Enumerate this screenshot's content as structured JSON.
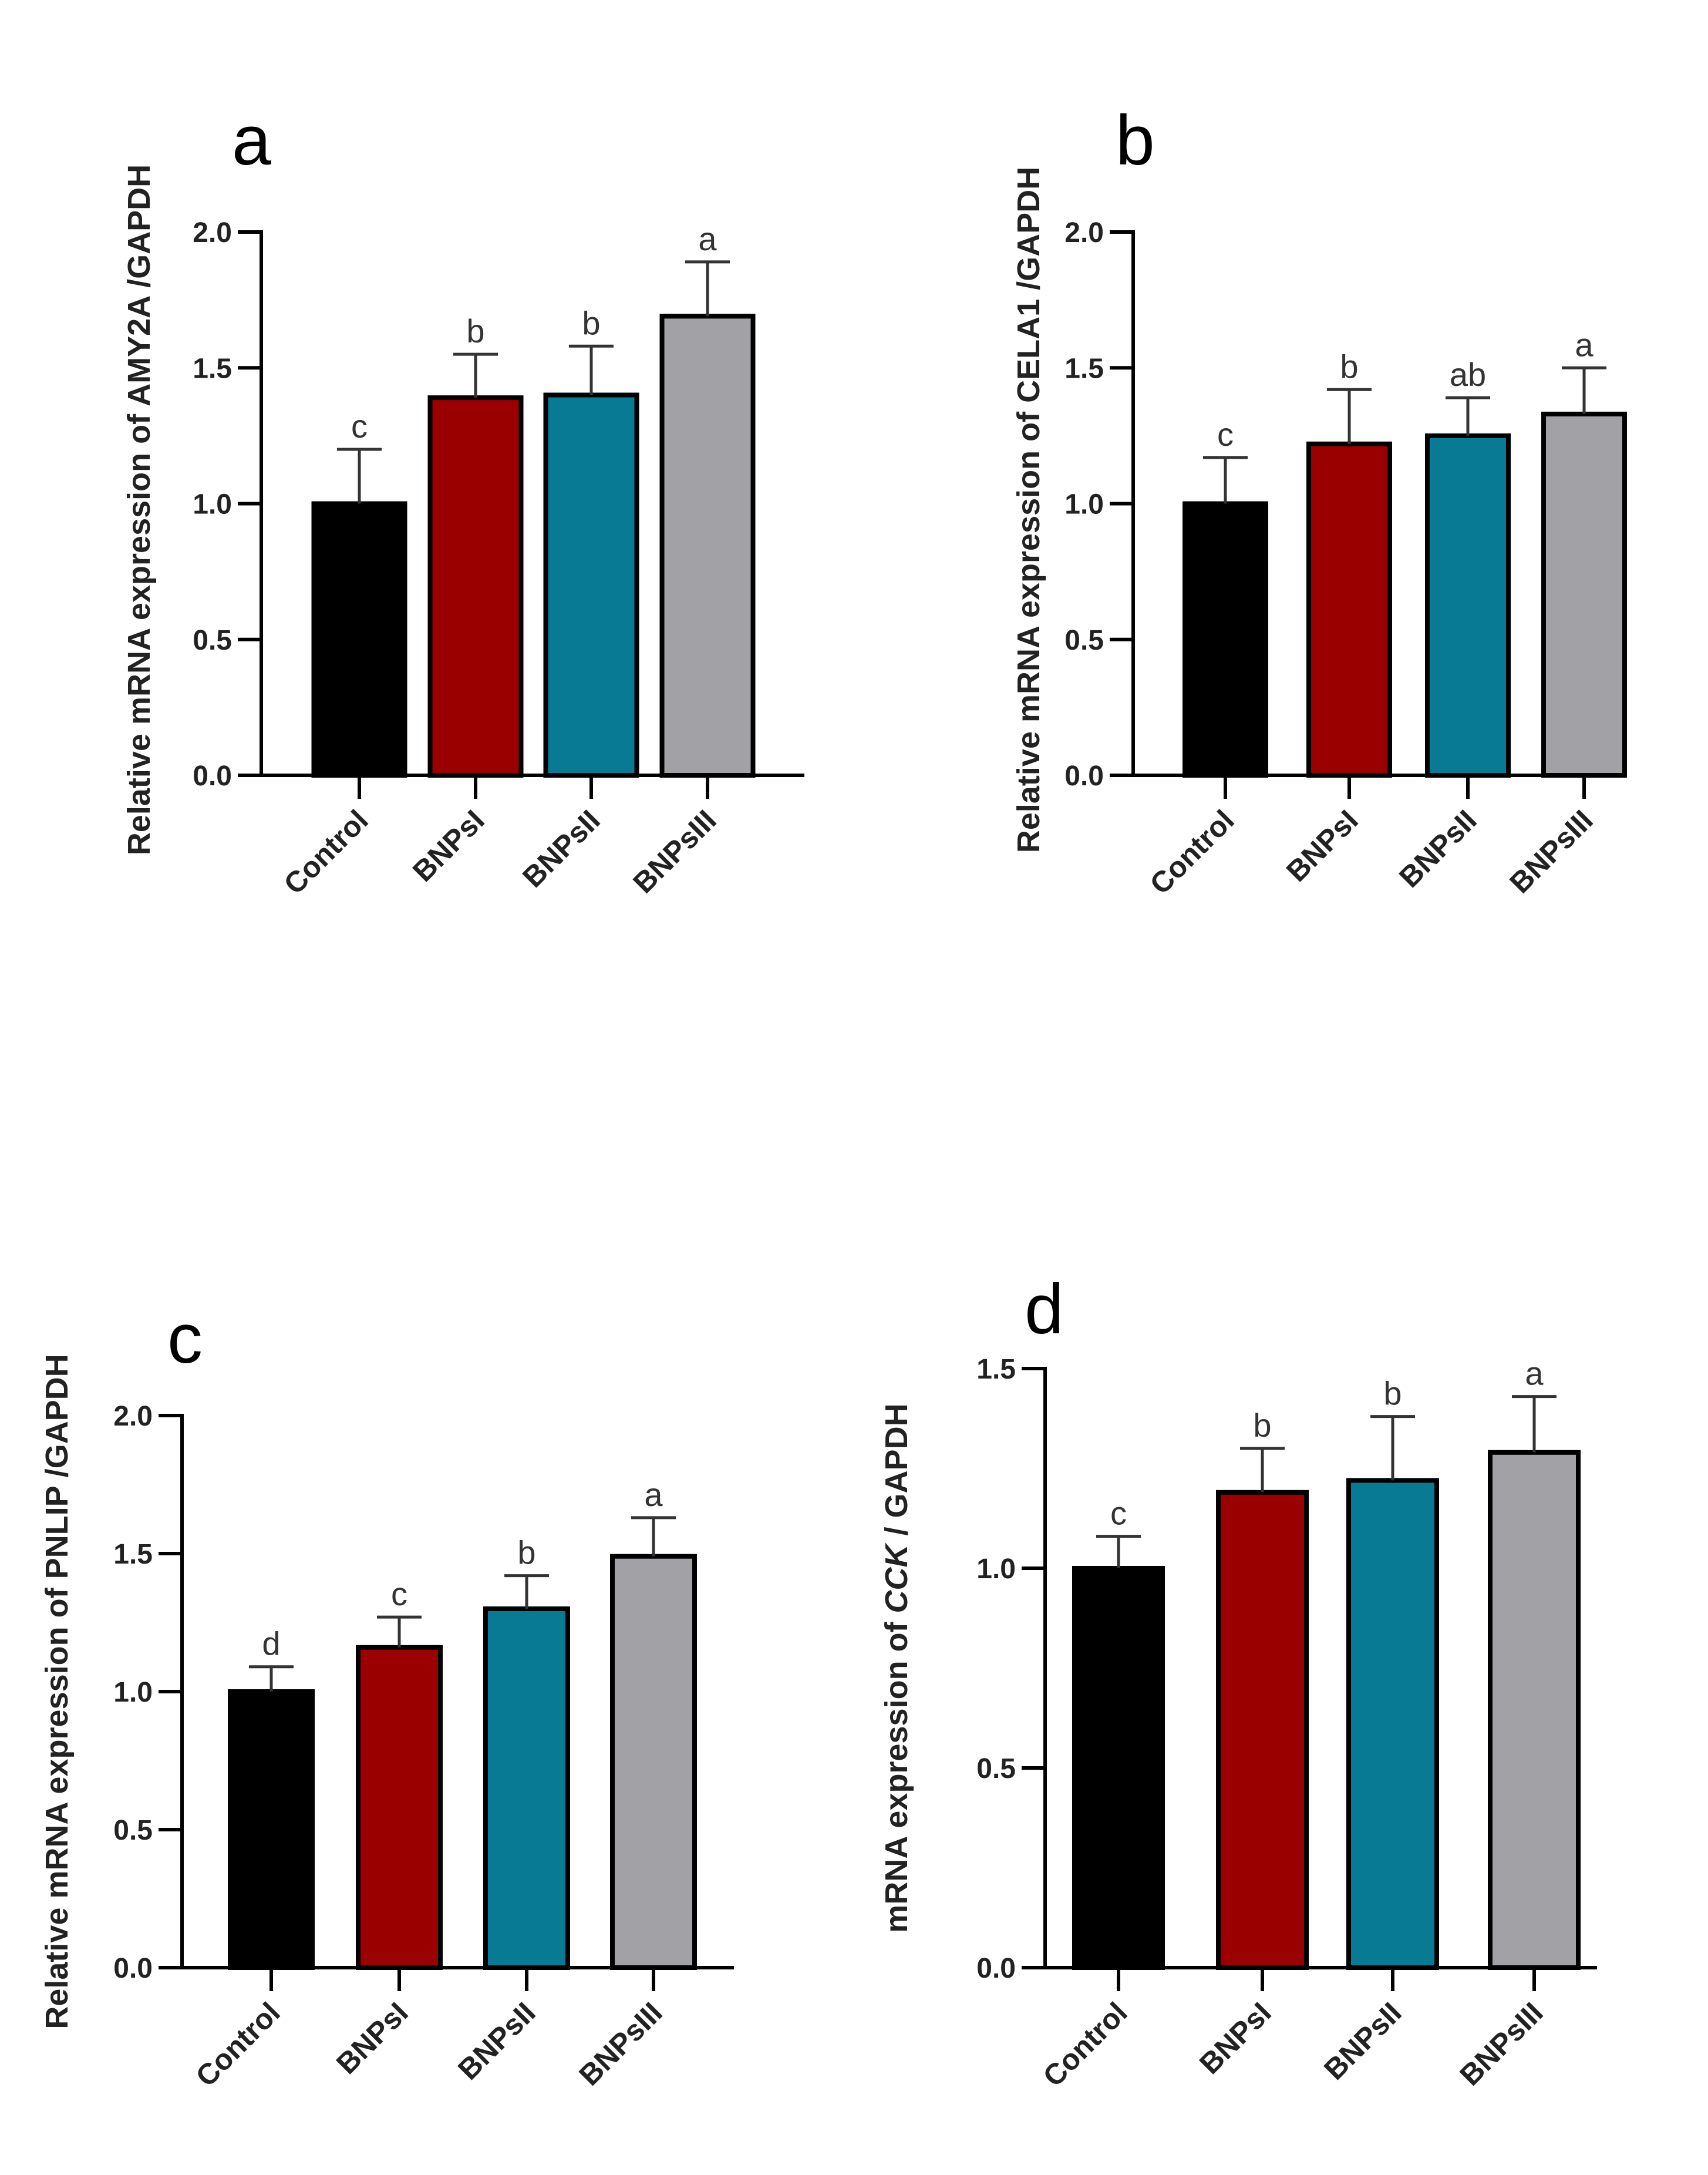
{
  "colors": {
    "Control": "#000000",
    "BNPsI": "#9b0000",
    "BNPsII": "#087a94",
    "BNPsIII": "#a2a2a6"
  },
  "chart_data": [
    {
      "type": "bar",
      "panel": "a",
      "categories": [
        "Control",
        "BNPsI",
        "BNPsII",
        "BNPsIII"
      ],
      "values": [
        1.0,
        1.39,
        1.4,
        1.69
      ],
      "errors": [
        0.2,
        0.16,
        0.18,
        0.2
      ],
      "significance": [
        "c",
        "b",
        "b",
        "a"
      ],
      "ylabel": "Relative mRNA expression of AMY2A /GAPDH",
      "ylim": [
        0,
        2.0
      ],
      "yticks": [
        "0.0",
        "0.5",
        "1.0",
        "1.5",
        "2.0"
      ]
    },
    {
      "type": "bar",
      "panel": "b",
      "categories": [
        "Control",
        "BNPsI",
        "BNPsII",
        "BNPsIII"
      ],
      "values": [
        1.0,
        1.22,
        1.25,
        1.33
      ],
      "errors": [
        0.17,
        0.2,
        0.14,
        0.17
      ],
      "significance": [
        "c",
        "b",
        "ab",
        "a"
      ],
      "ylabel": "Relative mRNA expression of CELA1 /GAPDH",
      "ylim": [
        0,
        2.0
      ],
      "yticks": [
        "0.0",
        "0.5",
        "1.0",
        "1.5",
        "2.0"
      ]
    },
    {
      "type": "bar",
      "panel": "c",
      "categories": [
        "Control",
        "BNPsI",
        "BNPsII",
        "BNPsIII"
      ],
      "values": [
        1.0,
        1.16,
        1.3,
        1.49
      ],
      "errors": [
        0.09,
        0.11,
        0.12,
        0.14
      ],
      "significance": [
        "d",
        "c",
        "b",
        "a"
      ],
      "ylabel": "Relative mRNA expression of PNLIP /GAPDH",
      "ylim": [
        0,
        2.0
      ],
      "yticks": [
        "0.0",
        "0.5",
        "1.0",
        "1.5",
        "2.0"
      ]
    },
    {
      "type": "bar",
      "panel": "d",
      "categories": [
        "Control",
        "BNPsI",
        "BNPsII",
        "BNPsIII"
      ],
      "values": [
        1.0,
        1.19,
        1.22,
        1.29
      ],
      "errors": [
        0.08,
        0.11,
        0.16,
        0.14
      ],
      "significance": [
        "c",
        "b",
        "b",
        "a"
      ],
      "ylabel_pre": "mRNA expression of ",
      "ylabel_gene": "CCK",
      "ylabel_post": " / GAPDH",
      "ylim": [
        0,
        1.5
      ],
      "yticks": [
        "0.0",
        "0.5",
        "1.0",
        "1.5"
      ]
    }
  ]
}
